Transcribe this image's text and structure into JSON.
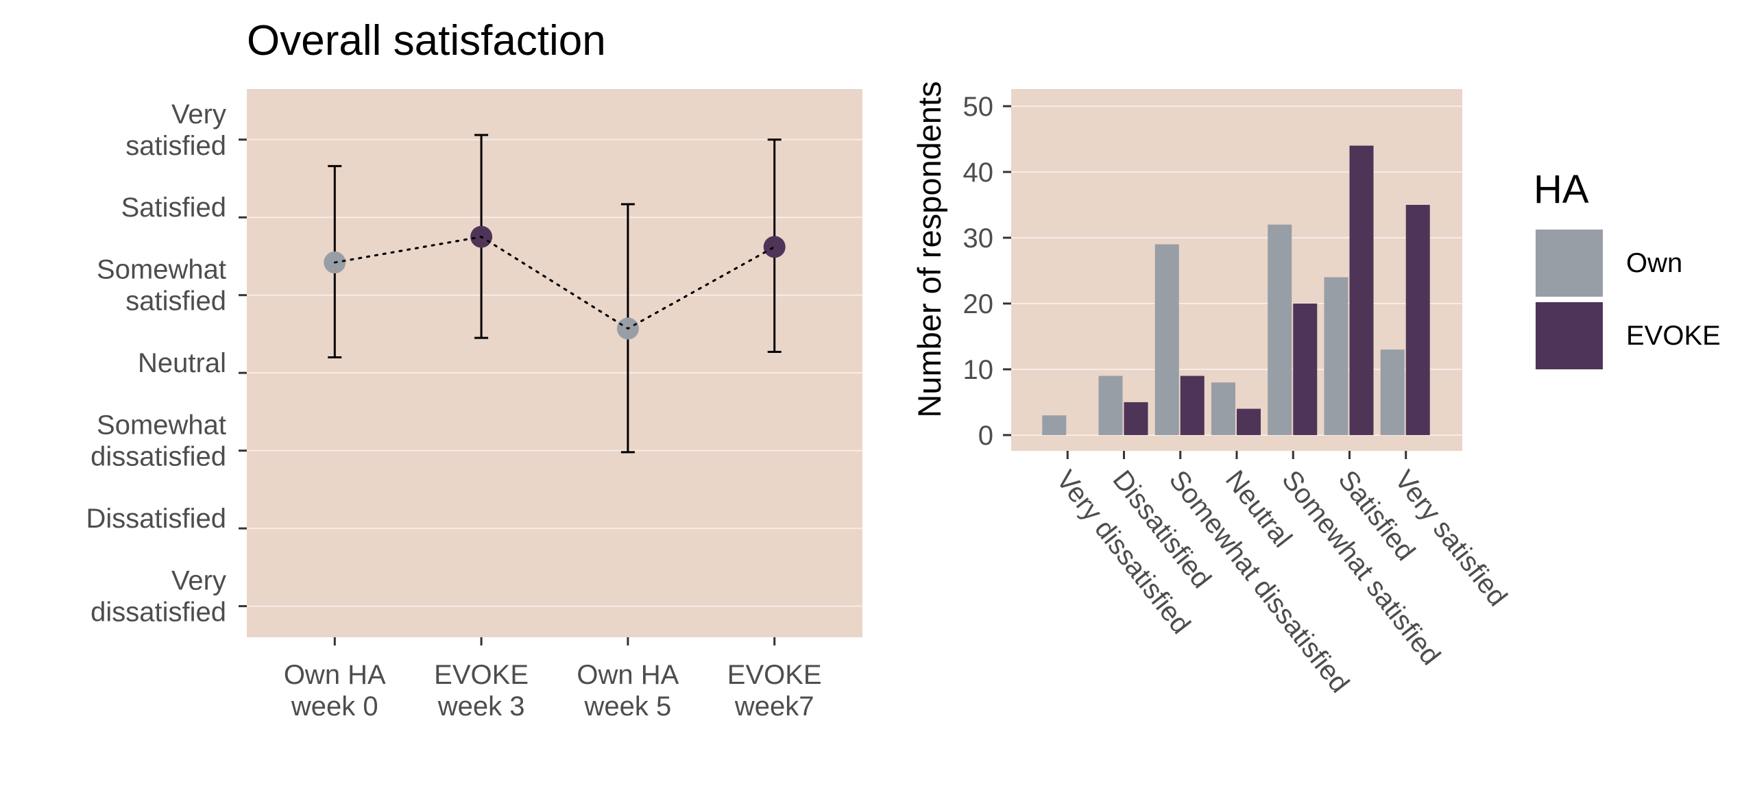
{
  "colors": {
    "panel": "#ead5c9",
    "grid": "#f7ece6",
    "own": "#979ea6",
    "evoke": "#4e3558",
    "errorbar": "#000000"
  },
  "chart_data": [
    {
      "type": "scatter",
      "title": "Overall satisfaction",
      "xlabel": "",
      "ylabel": "",
      "categories": [
        "Own HA\nweek 0",
        "EVOKE\nweek 3",
        "Own HA\nweek 5",
        "EVOKE\nweek7"
      ],
      "y_scale": [
        "Very\ndissatisfied",
        "Dissatisfied",
        "Somewhat\ndissatisfied",
        "Neutral",
        "Somewhat\nsatisfied",
        "Satisfied",
        "Very\nsatisfied"
      ],
      "ylim": [
        0.6,
        7.65
      ],
      "points": [
        {
          "x": "Own HA\nweek 0",
          "y": 5.42,
          "lower": 4.2,
          "upper": 6.66,
          "group": "Own"
        },
        {
          "x": "EVOKE\nweek 3",
          "y": 5.75,
          "lower": 4.45,
          "upper": 7.06,
          "group": "EVOKE"
        },
        {
          "x": "Own HA\nweek 5",
          "y": 4.57,
          "lower": 2.98,
          "upper": 6.17,
          "group": "Own"
        },
        {
          "x": "EVOKE\nweek7",
          "y": 5.62,
          "lower": 4.27,
          "upper": 7.0,
          "group": "EVOKE"
        }
      ],
      "line_style": "dotted",
      "grid": true
    },
    {
      "type": "bar",
      "title": "",
      "xlabel": "",
      "ylabel": "Number of respondents",
      "categories": [
        "Very dissatisfied",
        "Dissatisfied",
        "Somewhat dissatisfied",
        "Neutral",
        "Somewhat satisfied",
        "Satisfied",
        "Very satisfied"
      ],
      "series": [
        {
          "name": "Own",
          "values": [
            3,
            9,
            29,
            8,
            32,
            24,
            13
          ]
        },
        {
          "name": "EVOKE",
          "values": [
            0,
            5,
            9,
            4,
            20,
            44,
            35
          ]
        }
      ],
      "ylim": [
        -2.4,
        52.6
      ],
      "yticks": [
        0,
        10,
        20,
        30,
        40,
        50
      ],
      "grid": true,
      "legend": {
        "title": "HA",
        "position": "right"
      }
    }
  ]
}
